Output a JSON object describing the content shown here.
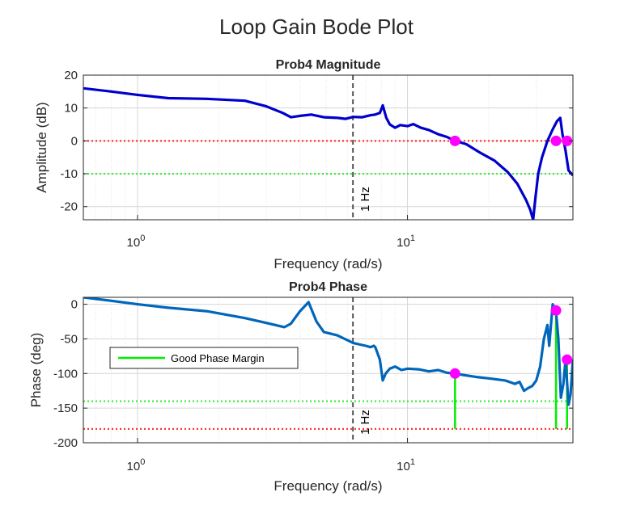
{
  "figure": {
    "title": "Loop Gain Bode Plot"
  },
  "chart_data": [
    {
      "id": "magnitude",
      "type": "line",
      "title": "Prob4 Magnitude",
      "xlabel": "Frequency (rad/s)",
      "ylabel": "Amplitude (dB)",
      "xscale": "log",
      "xlim": [
        0.63,
        41
      ],
      "ylim": [
        -24,
        20
      ],
      "yticks": [
        "20",
        "10",
        "0",
        "-10",
        "-20"
      ],
      "xticks": [
        {
          "base": "10",
          "exp": "0"
        },
        {
          "base": "10",
          "exp": "1"
        }
      ],
      "grid": true,
      "series": [
        {
          "color": "#0000cc",
          "x": [
            0.63,
            0.8,
            1.0,
            1.3,
            1.8,
            2.5,
            3.0,
            3.45,
            3.7,
            4.0,
            4.4,
            4.9,
            5.5,
            5.9,
            6.3,
            6.8,
            7.3,
            7.6,
            7.9,
            8.1,
            8.35,
            8.6,
            9.0,
            9.4,
            10.0,
            10.5,
            11.2,
            12.0,
            13.0,
            14.0,
            15.0,
            16.5,
            18.5,
            21.0,
            23.5,
            25.5,
            27.5,
            28.5,
            29.2,
            29.8,
            30.5,
            31.5,
            33.0,
            34.5,
            35.8,
            36.8,
            37.5,
            38.5,
            39.5,
            41.0
          ],
          "y": [
            16,
            15,
            14,
            13,
            12.8,
            12.2,
            10.5,
            8.5,
            7.2,
            7.6,
            8.0,
            7.2,
            7.0,
            6.7,
            7.3,
            7.2,
            7.8,
            8.0,
            8.5,
            10.8,
            7.0,
            5.0,
            4.0,
            4.8,
            4.5,
            5.1,
            4.0,
            3.3,
            2.0,
            1.2,
            0.0,
            -1.0,
            -3.5,
            -6.0,
            -9.5,
            -13,
            -18,
            -21,
            -24,
            -17,
            -10,
            -5,
            0,
            3.5,
            6,
            7,
            2,
            -3,
            -9,
            -10.5
          ]
        }
      ],
      "reference_lines": [
        {
          "y": 0,
          "color": "#ff3333",
          "style": "dotted"
        },
        {
          "y": -10,
          "color": "#33ee33",
          "style": "dotted"
        }
      ],
      "vline": {
        "x": 6.28,
        "label": "1 Hz",
        "color": "#555555"
      },
      "markers": [
        {
          "x": 15.0,
          "y": 0,
          "color": "#ff00ff"
        },
        {
          "x": 35.5,
          "y": 0,
          "color": "#ff00ff"
        },
        {
          "x": 39.0,
          "y": 0,
          "color": "#ff00ff"
        }
      ]
    },
    {
      "id": "phase",
      "type": "line",
      "title": "Prob4 Phase",
      "xlabel": "Frequency (rad/s)",
      "ylabel": "Phase (deg)",
      "xscale": "log",
      "xlim": [
        0.63,
        41
      ],
      "ylim": [
        -200,
        10
      ],
      "yticks": [
        "0",
        "-50",
        "-100",
        "-150",
        "-200"
      ],
      "xticks": [
        {
          "base": "10",
          "exp": "0"
        },
        {
          "base": "10",
          "exp": "1"
        }
      ],
      "grid": true,
      "legend": {
        "label": "Good Phase Margin",
        "color": "#00ee00",
        "position": "left"
      },
      "series": [
        {
          "color": "#0066bb",
          "x": [
            0.63,
            0.8,
            1.0,
            1.3,
            1.8,
            2.5,
            3.0,
            3.5,
            3.7,
            4.0,
            4.3,
            4.6,
            4.9,
            5.5,
            6.3,
            7.0,
            7.3,
            7.5,
            7.6,
            7.9,
            8.1,
            8.3,
            8.6,
            9.0,
            9.5,
            10.0,
            11.0,
            12.0,
            13.0,
            14.0,
            15.0,
            16.0,
            18.0,
            20.0,
            23.0,
            25.0,
            26.0,
            27.0,
            28.0,
            29.0,
            30.0,
            31.0,
            32.0,
            33.0,
            33.5,
            34.5,
            35.5,
            36.2,
            37.0,
            37.8,
            38.5,
            39.5,
            40.2,
            41.0
          ],
          "y": [
            10,
            5,
            0,
            -5,
            -10,
            -20,
            -27,
            -33,
            -28,
            -10,
            3,
            -25,
            -40,
            -45,
            -56,
            -60,
            -62,
            -60,
            -62,
            -80,
            -110,
            -100,
            -93,
            -90,
            -95,
            -93,
            -94,
            -97,
            -95,
            -99,
            -100,
            -102,
            -105,
            -107,
            -110,
            -115,
            -112,
            -125,
            -121,
            -118,
            -110,
            -90,
            -50,
            -30,
            -60,
            0,
            -10,
            -50,
            -135,
            -115,
            -80,
            -145,
            -130,
            -80
          ]
        }
      ],
      "reference_lines": [
        {
          "y": -140,
          "color": "#33ee33",
          "style": "dotted"
        },
        {
          "y": -180,
          "color": "#ff3333",
          "style": "dotted"
        }
      ],
      "vline": {
        "x": 6.28,
        "label": "1 Hz",
        "color": "#555555"
      },
      "stems": [
        {
          "x": 15.0,
          "y": -100,
          "color": "#00ee00"
        },
        {
          "x": 35.5,
          "y": -9,
          "color": "#00ee00"
        },
        {
          "x": 39.0,
          "y": -80,
          "color": "#00ee00"
        }
      ],
      "markers": [
        {
          "x": 15.0,
          "y": -100,
          "color": "#ff00ff"
        },
        {
          "x": 35.5,
          "y": -9,
          "color": "#ff00ff"
        },
        {
          "x": 39.0,
          "y": -80,
          "color": "#ff00ff"
        }
      ]
    }
  ]
}
